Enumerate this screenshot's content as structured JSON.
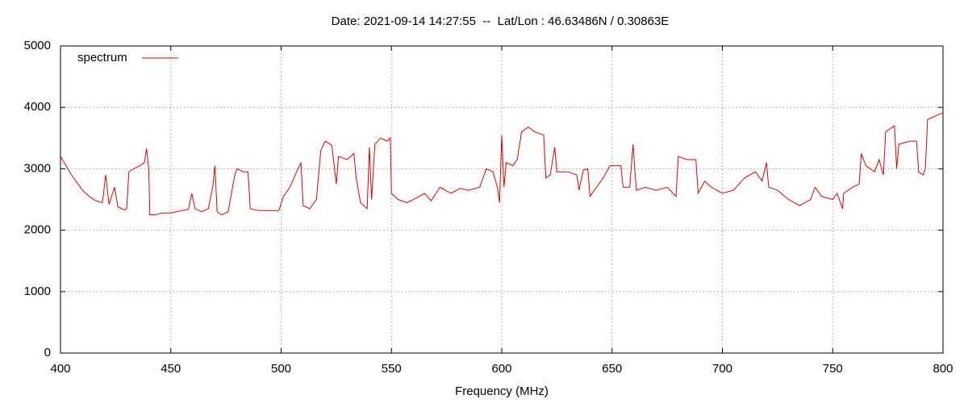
{
  "chart_data": {
    "type": "line",
    "title": "Date: 2021-09-14 14:27:55  --  Lat/Lon : 46.63486N / 0.30863E",
    "xlabel": "Frequency (MHz)",
    "xlim": [
      400,
      800
    ],
    "ylim": [
      0,
      5000
    ],
    "xticks": [
      400,
      450,
      500,
      550,
      600,
      650,
      700,
      750,
      800
    ],
    "yticks": [
      0,
      1000,
      2000,
      3000,
      4000,
      5000
    ],
    "grid": true,
    "legend": "upper left",
    "x": [
      400,
      402,
      405,
      408,
      410,
      413,
      416,
      419,
      420.5,
      422,
      424.5,
      426,
      429,
      430,
      431,
      433,
      436,
      438,
      439,
      440,
      440.5,
      443,
      446,
      450,
      455,
      458,
      459.5,
      461,
      464,
      467,
      469,
      470,
      471,
      473,
      476,
      479,
      480,
      483,
      485,
      486,
      490,
      495,
      499,
      501,
      504,
      507,
      509,
      510,
      513,
      516,
      518,
      520,
      523,
      525,
      526,
      530,
      533,
      534,
      536,
      539,
      540,
      541,
      542.5,
      545,
      548,
      549.5,
      550,
      553,
      557,
      560,
      565,
      568,
      572,
      577,
      581,
      585,
      590,
      593,
      596,
      598,
      599,
      600,
      601,
      602,
      605,
      607,
      609,
      612,
      615,
      619,
      620,
      622,
      624,
      625,
      630,
      634,
      635,
      637,
      639,
      640,
      643,
      646,
      649,
      651,
      654,
      655,
      658,
      659.5,
      661,
      665,
      670,
      675,
      679,
      680,
      684,
      688,
      689,
      692,
      695,
      700,
      705,
      710,
      715,
      718,
      720,
      721,
      725,
      730,
      735,
      740,
      742,
      745,
      750,
      752,
      754.5,
      755,
      759,
      762,
      763,
      765,
      769,
      771,
      773,
      774,
      776,
      778,
      779,
      780,
      785,
      788,
      789,
      791,
      792,
      793,
      796,
      799,
      800
    ],
    "series": [
      {
        "name": "spectrum",
        "color": "#e00000",
        "values": [
          3200,
          3080,
          2900,
          2750,
          2650,
          2550,
          2480,
          2450,
          2900,
          2420,
          2700,
          2380,
          2330,
          2350,
          2950,
          3000,
          3050,
          3100,
          3330,
          3000,
          2250,
          2250,
          2280,
          2280,
          2320,
          2340,
          2600,
          2350,
          2300,
          2350,
          2700,
          3050,
          2300,
          2250,
          2300,
          2900,
          3000,
          2950,
          2950,
          2350,
          2320,
          2320,
          2320,
          2550,
          2700,
          2950,
          3100,
          2400,
          2350,
          2500,
          3300,
          3450,
          3380,
          2750,
          3200,
          3150,
          3250,
          2850,
          2450,
          2350,
          3350,
          2500,
          3400,
          3500,
          3450,
          3500,
          2600,
          2500,
          2450,
          2500,
          2600,
          2480,
          2700,
          2600,
          2680,
          2650,
          2700,
          3000,
          2950,
          2700,
          2450,
          3550,
          2700,
          3100,
          3050,
          3150,
          3600,
          3680,
          3600,
          3550,
          2850,
          2900,
          3350,
          2950,
          2950,
          2900,
          2650,
          2980,
          3000,
          2550,
          2700,
          2850,
          3050,
          3050,
          3050,
          2700,
          2700,
          3400,
          2650,
          2700,
          2650,
          2700,
          2550,
          3200,
          3150,
          3150,
          2600,
          2800,
          2700,
          2600,
          2650,
          2850,
          2950,
          2800,
          3100,
          2700,
          2650,
          2500,
          2400,
          2500,
          2700,
          2550,
          2500,
          2600,
          2350,
          2600,
          2700,
          2750,
          3250,
          3050,
          2950,
          3150,
          2900,
          3600,
          3650,
          3700,
          3000,
          3400,
          3450,
          3450,
          2950,
          2900,
          3000,
          3800,
          3850,
          3900,
          3900
        ]
      }
    ]
  }
}
